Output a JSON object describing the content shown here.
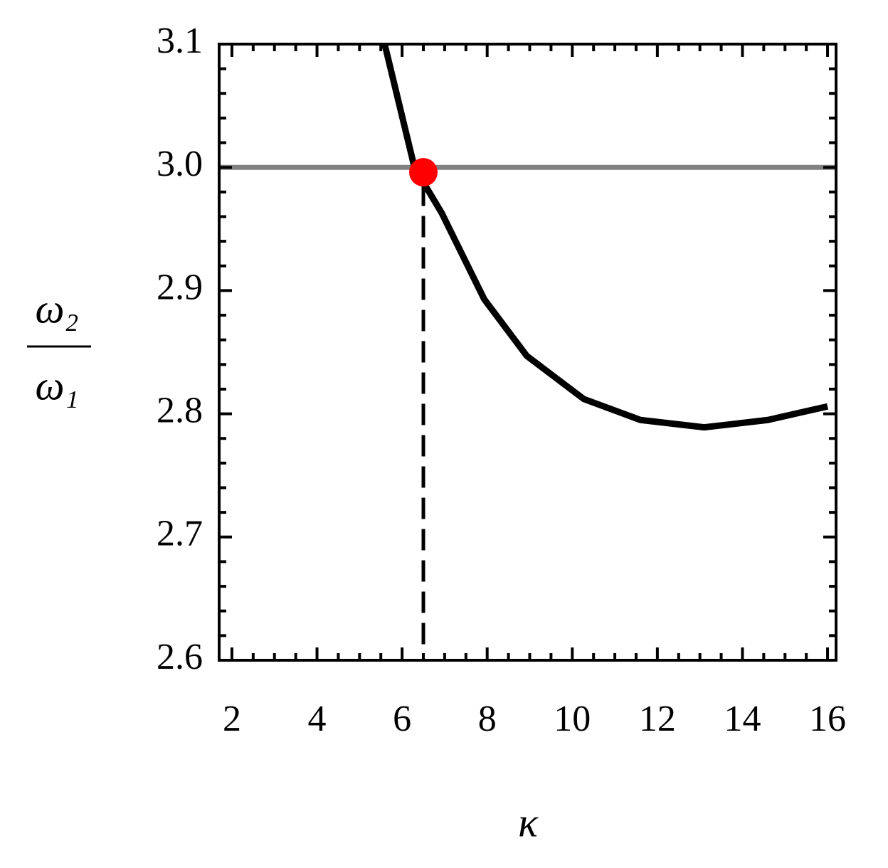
{
  "chart_data": {
    "type": "line",
    "xlabel": "κ",
    "ylabel_numerator": "ω₂",
    "ylabel_denominator": "ω₁",
    "xlim": [
      1.7,
      16.2
    ],
    "ylim": [
      2.6,
      3.1
    ],
    "xticks": [
      2,
      4,
      6,
      8,
      10,
      12,
      14,
      16
    ],
    "yticks": [
      2.6,
      2.7,
      2.8,
      2.9,
      {
        "value": 3,
        "label": "3.0"
      },
      3.1
    ],
    "xminorticks": [
      2.5,
      3,
      3.5,
      4.5,
      5,
      5.5,
      6.5,
      7,
      7.5,
      8.5,
      9,
      9.5,
      10.5,
      11,
      11.5,
      12.5,
      13,
      13.5,
      14.5,
      15,
      15.5
    ],
    "yminorticks": [
      2.62,
      2.64,
      2.66,
      2.68,
      2.72,
      2.74,
      2.76,
      2.78,
      2.82,
      2.84,
      2.86,
      2.88,
      2.92,
      2.94,
      2.96,
      2.98,
      3.02,
      3.04,
      3.06,
      3.08
    ],
    "series": [
      {
        "style": "solid",
        "color": "#808080",
        "width": 7,
        "x": [
          1.7,
          16.2
        ],
        "values": [
          3.0,
          3.0
        ]
      },
      {
        "style": "solid",
        "color": "#000000",
        "width": 9,
        "x": [
          5.59,
          6.29,
          6.93,
          7.93,
          8.93,
          10.27,
          11.6,
          13.1,
          14.6,
          16.0
        ],
        "values": [
          3.1,
          3.0,
          2.963,
          2.893,
          2.847,
          2.812,
          2.795,
          2.789,
          2.795,
          2.806
        ]
      },
      {
        "style": "dashed",
        "color": "#000000",
        "width": 5,
        "x": [
          6.5,
          6.5
        ],
        "values": [
          2.613,
          3.0
        ]
      },
      {
        "style": "marker",
        "color": "#ff0000",
        "width": 20,
        "x": [
          6.5
        ],
        "values": [
          2.996
        ]
      }
    ]
  }
}
